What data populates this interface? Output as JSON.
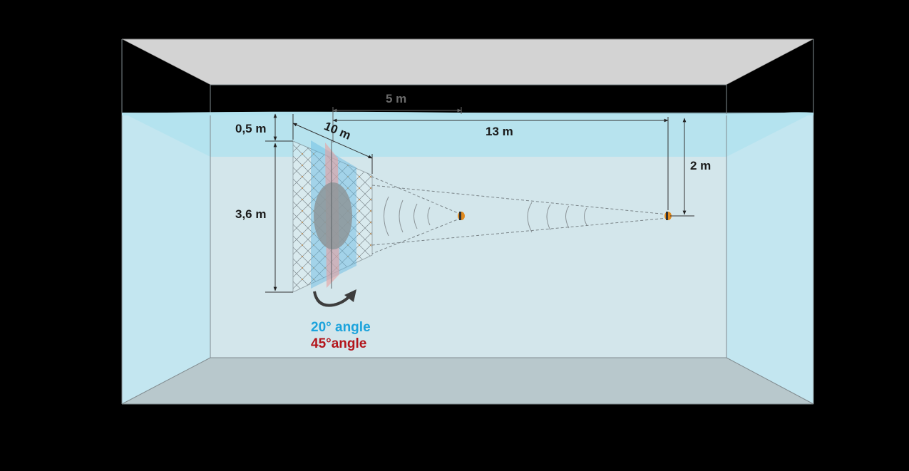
{
  "diagram": {
    "labels": {
      "dim_5m": "5 m",
      "dim_13m": "13 m",
      "dim_10m": "10 m",
      "dim_05m": "0,5 m",
      "dim_2m": "2 m",
      "dim_36m": "3,6 m",
      "angle_20": "20° angle",
      "angle_45": "45°angle"
    },
    "colors": {
      "background": "#000000",
      "water": "#cbe7ef",
      "ceiling": "#d3d3d3",
      "floor": "#b9c7cb",
      "angle_20": "#1ba3dc",
      "angle_45": "#b3151b",
      "transducer": "#e08a1e"
    }
  }
}
